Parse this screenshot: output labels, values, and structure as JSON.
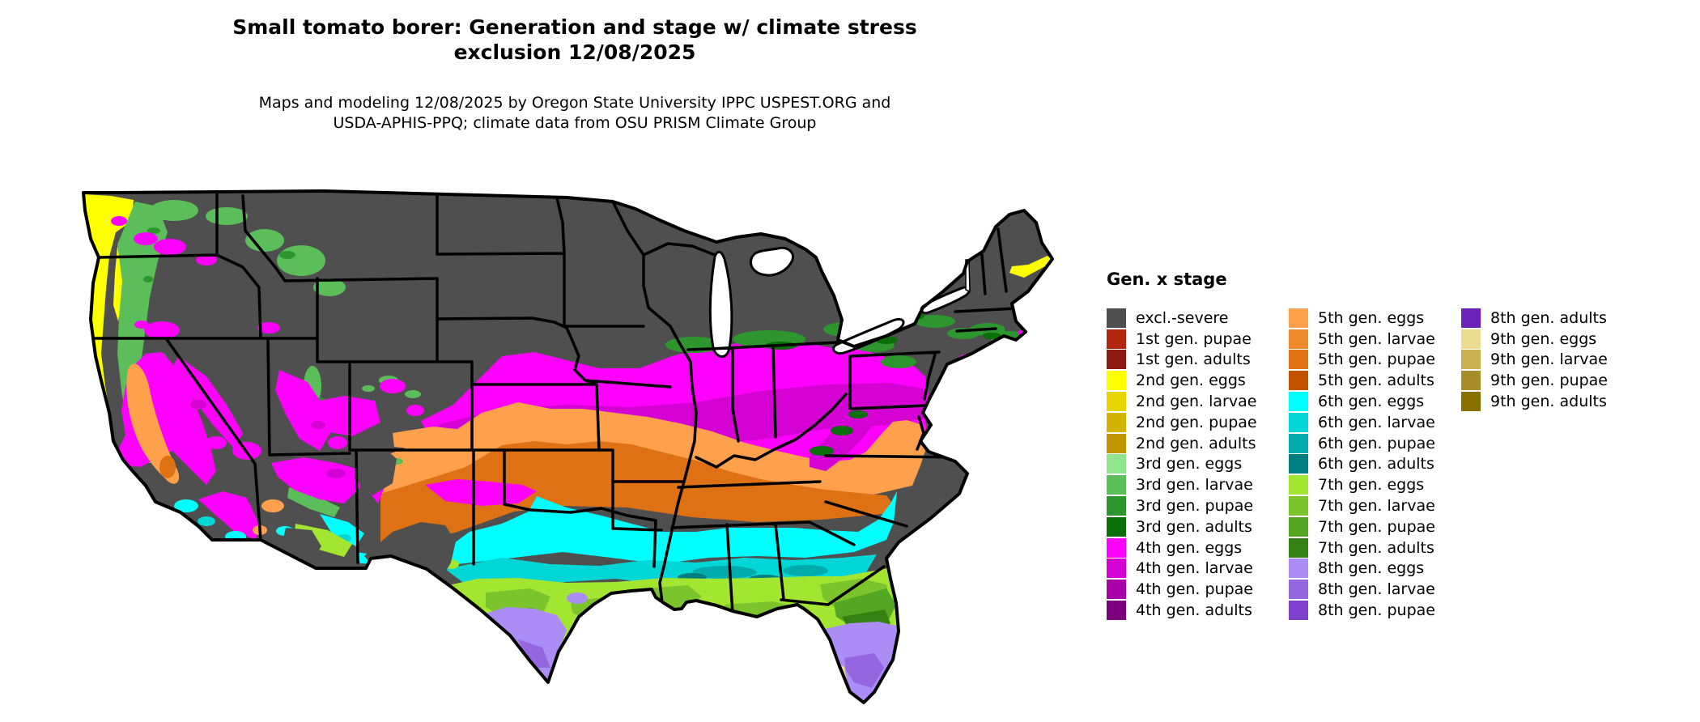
{
  "header": {
    "title_line1": "Small tomato borer: Generation and stage w/ climate stress",
    "title_line2": "exclusion 12/08/2025",
    "subtitle_line1": "Maps and modeling 12/08/2025 by Oregon State University IPPC USPEST.ORG and",
    "subtitle_line2": "USDA-APHIS-PPQ; climate data from OSU PRISM Climate Group"
  },
  "legend": {
    "title": "Gen. x stage",
    "columns": [
      [
        {
          "key": "excl",
          "label": "excl.-severe",
          "color": "#4F4F4F"
        },
        {
          "key": "g1p",
          "label": "1st gen. pupae",
          "color": "#B3260F"
        },
        {
          "key": "g1a",
          "label": "1st gen. adults",
          "color": "#8C1A12"
        },
        {
          "key": "g2e",
          "label": "2nd gen. eggs",
          "color": "#FFFF00"
        },
        {
          "key": "g2l",
          "label": "2nd gen. larvae",
          "color": "#E8D400"
        },
        {
          "key": "g2p",
          "label": "2nd gen. pupae",
          "color": "#D2B400"
        },
        {
          "key": "g2a",
          "label": "2nd gen. adults",
          "color": "#BC9500"
        },
        {
          "key": "g3e",
          "label": "3rd gen. eggs",
          "color": "#8FE68F"
        },
        {
          "key": "g3l",
          "label": "3rd gen. larvae",
          "color": "#5BBE5B"
        },
        {
          "key": "g3p",
          "label": "3rd gen. pupae",
          "color": "#2E962E"
        },
        {
          "key": "g3a",
          "label": "3rd gen. adults",
          "color": "#0A6E0A"
        },
        {
          "key": "g4e",
          "label": "4th gen. eggs",
          "color": "#FF00FF"
        },
        {
          "key": "g4l",
          "label": "4th gen. larvae",
          "color": "#D400D4"
        },
        {
          "key": "g4p",
          "label": "4th gen. pupae",
          "color": "#AA00AA"
        },
        {
          "key": "g4a",
          "label": "4th gen. adults",
          "color": "#7D007D"
        }
      ],
      [
        {
          "key": "g5e",
          "label": "5th gen. eggs",
          "color": "#FFA04D"
        },
        {
          "key": "g5l",
          "label": "5th gen. larvae",
          "color": "#F08A2E"
        },
        {
          "key": "g5p",
          "label": "5th gen. pupae",
          "color": "#DE7114"
        },
        {
          "key": "g5a",
          "label": "5th gen. adults",
          "color": "#C25400"
        },
        {
          "key": "g6e",
          "label": "6th gen. eggs",
          "color": "#00FFFF"
        },
        {
          "key": "g6l",
          "label": "6th gen. larvae",
          "color": "#00D6D6"
        },
        {
          "key": "g6p",
          "label": "6th gen. pupae",
          "color": "#00ABAB"
        },
        {
          "key": "g6a",
          "label": "6th gen. adults",
          "color": "#007D7D"
        },
        {
          "key": "g7e",
          "label": "7th gen. eggs",
          "color": "#A3E632"
        },
        {
          "key": "g7l",
          "label": "7th gen. larvae",
          "color": "#7CC42B"
        },
        {
          "key": "g7p",
          "label": "7th gen. pupae",
          "color": "#55A623"
        },
        {
          "key": "g7a",
          "label": "7th gen. adults",
          "color": "#368114"
        },
        {
          "key": "g8e",
          "label": "8th gen. eggs",
          "color": "#AC8CF5"
        },
        {
          "key": "g8l",
          "label": "8th gen. larvae",
          "color": "#9566E0"
        },
        {
          "key": "g8p",
          "label": "8th gen. pupae",
          "color": "#7F41CB"
        }
      ],
      [
        {
          "key": "g8a",
          "label": "8th gen. adults",
          "color": "#6C22B8"
        },
        {
          "key": "g9e",
          "label": "9th gen. eggs",
          "color": "#EBDC8F"
        },
        {
          "key": "g9l",
          "label": "9th gen. larvae",
          "color": "#C9B050"
        },
        {
          "key": "g9p",
          "label": "9th gen. pupae",
          "color": "#A78D28"
        },
        {
          "key": "g9a",
          "label": "9th gen. adults",
          "color": "#8A7000"
        }
      ]
    ]
  },
  "map": {
    "region": "Continental United States",
    "border_color": "#000000",
    "water_color": "#FFFFFF"
  }
}
